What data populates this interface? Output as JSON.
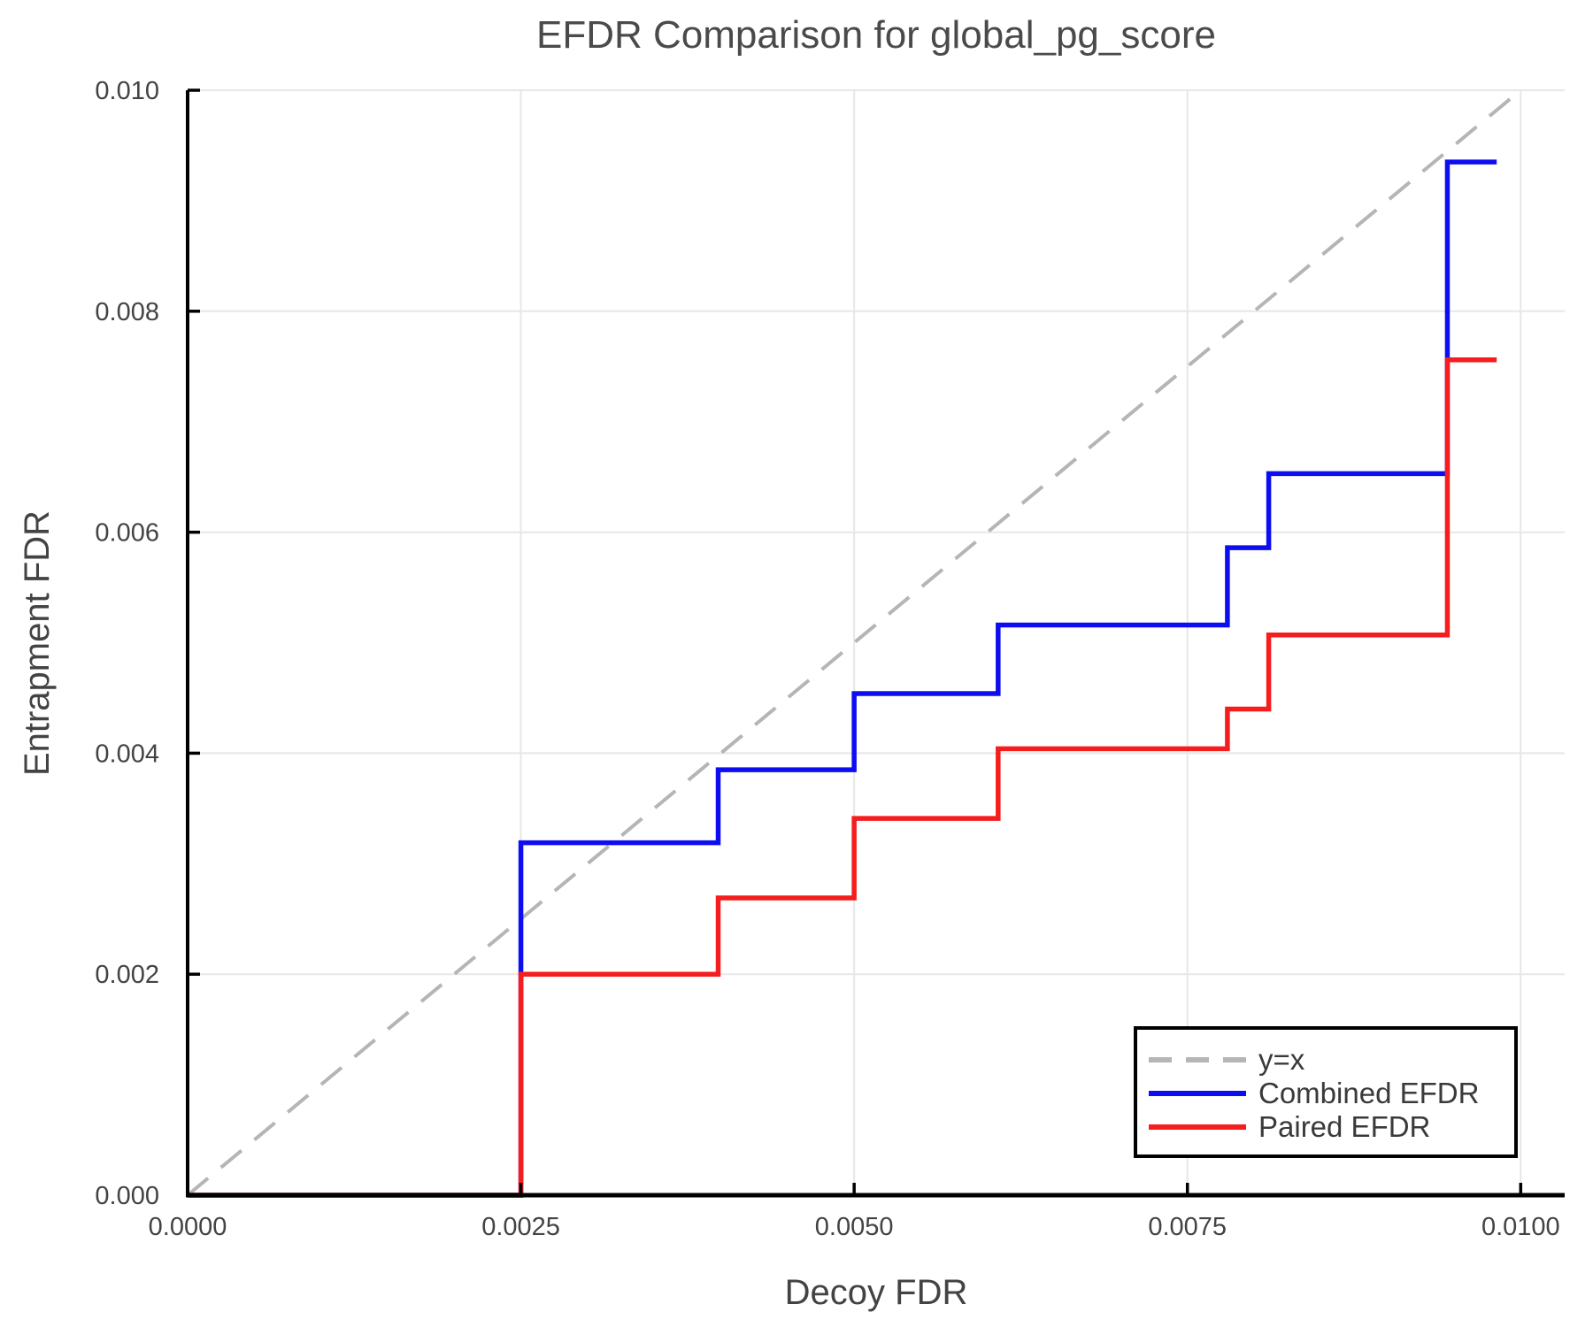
{
  "title": "EFDR Comparison for global_pg_score",
  "colors": {
    "background": "#ffffff",
    "grid": "#e7e7e7",
    "spine": "#000000",
    "identity": "#b5b5b5",
    "combined": "#0d0df2",
    "paired": "#f51d1d",
    "legend_border": "#000000",
    "legend_bg": "#ffffff"
  },
  "chart_data": {
    "type": "line",
    "title": "EFDR Comparison for global_pg_score",
    "xlabel": "Decoy FDR",
    "ylabel": "Entrapment FDR",
    "xlim": [
      0,
      0.01033
    ],
    "ylim": [
      0,
      0.01
    ],
    "grid": true,
    "legend_position": "lower right",
    "x_ticks": {
      "values": [
        0,
        0.0025,
        0.005,
        0.0075,
        0.01
      ],
      "labels": [
        "0.0000",
        "0.0025",
        "0.0050",
        "0.0075",
        "0.0100"
      ]
    },
    "y_ticks": {
      "values": [
        0,
        0.002,
        0.004,
        0.006,
        0.008,
        0.01
      ],
      "labels": [
        "0.000",
        "0.002",
        "0.004",
        "0.006",
        "0.008",
        "0.010"
      ]
    },
    "series": [
      {
        "name": "y=x",
        "draw": "line",
        "style": "dashed",
        "color": "#b5b5b5",
        "width": 4,
        "points": [
          [
            0,
            0
          ],
          [
            0.01,
            0.01
          ]
        ]
      },
      {
        "name": "Combined EFDR",
        "draw": "step-post",
        "style": "solid",
        "color": "#0d0df2",
        "width": 5.5,
        "points": [
          [
            0,
            0
          ],
          [
            0.0025,
            0.00319
          ],
          [
            0.00398,
            0.00385
          ],
          [
            0.005,
            0.00454
          ],
          [
            0.00608,
            0.00516
          ],
          [
            0.0078,
            0.00586
          ],
          [
            0.00811,
            0.00653
          ],
          [
            0.00945,
            0.00935
          ],
          [
            0.00982,
            0.00935
          ]
        ]
      },
      {
        "name": "Paired EFDR",
        "draw": "step-post",
        "style": "solid",
        "color": "#f51d1d",
        "width": 5.5,
        "points": [
          [
            0,
            0
          ],
          [
            0.0025,
            0.002
          ],
          [
            0.00398,
            0.00269
          ],
          [
            0.005,
            0.00341
          ],
          [
            0.00608,
            0.00404
          ],
          [
            0.0078,
            0.0044
          ],
          [
            0.00811,
            0.00507
          ],
          [
            0.00945,
            0.00756
          ],
          [
            0.00982,
            0.00756
          ]
        ]
      }
    ]
  },
  "legend": {
    "items": [
      {
        "label": "y=x"
      },
      {
        "label": "Combined EFDR"
      },
      {
        "label": "Paired EFDR"
      }
    ]
  }
}
